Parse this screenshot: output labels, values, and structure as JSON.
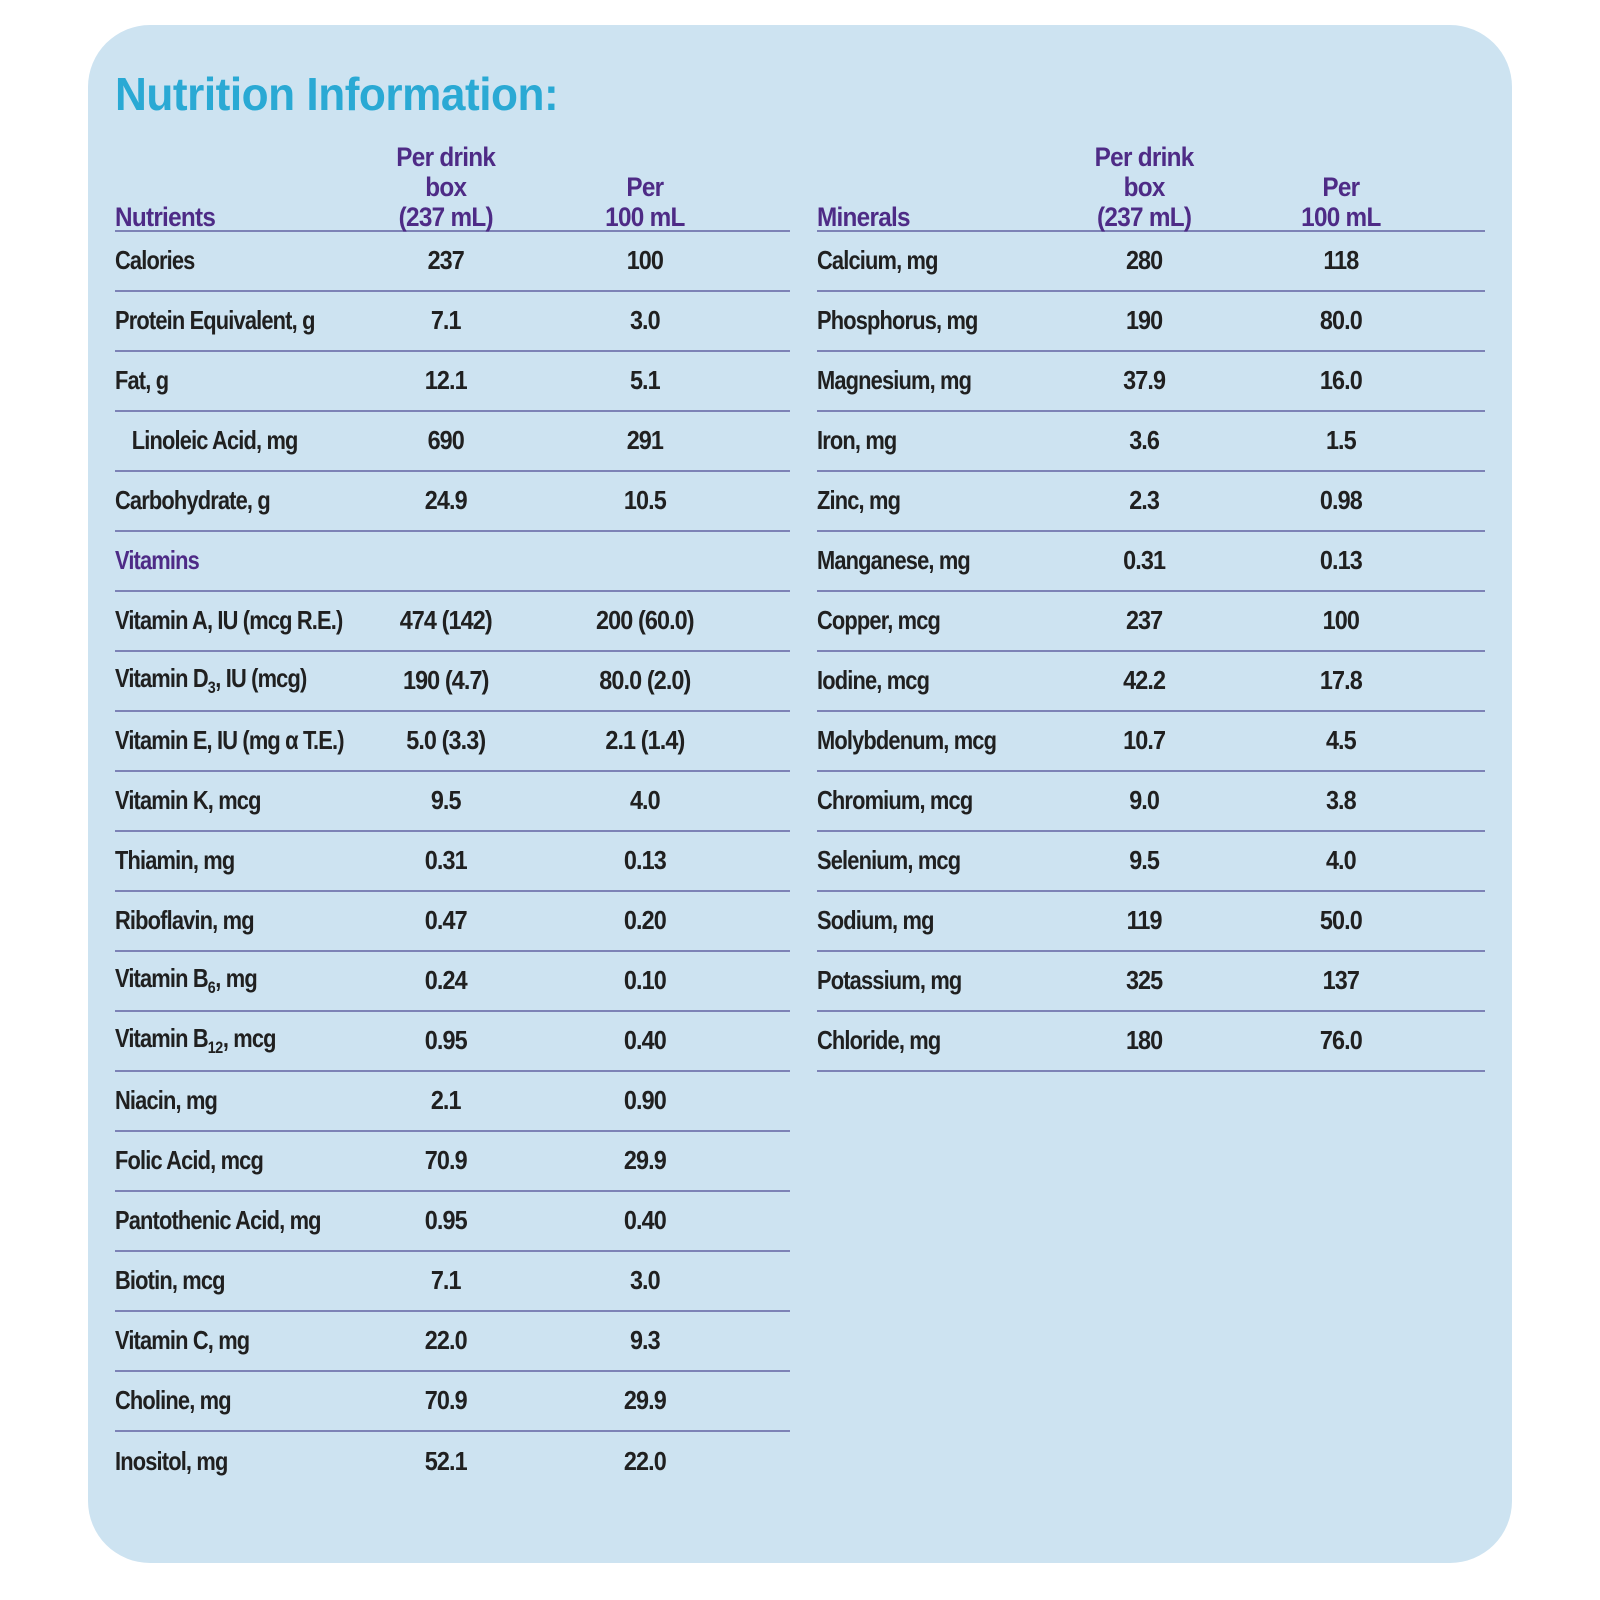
{
  "title": "Nutrition Information:",
  "colors": {
    "card_background": "#cde3f1",
    "title_accent": "#2aa9d4",
    "header_purple": "#4e2b86",
    "divider": "#7d83b6",
    "text": "#202020"
  },
  "column_headers": {
    "per_box": "Per drink box\n(237 mL)",
    "per_100": "Per\n100 mL"
  },
  "tables": [
    {
      "group_label": "Nutrients",
      "rows": [
        {
          "label": "Calories",
          "per_box": "237",
          "per_100": "100"
        },
        {
          "label": "Protein Equivalent, g",
          "per_box": "7.1",
          "per_100": "3.0"
        },
        {
          "label": "Fat, g",
          "per_box": "12.1",
          "per_100": "5.1"
        },
        {
          "label": "Linoleic Acid, mg",
          "indent": true,
          "per_box": "690",
          "per_100": "291"
        },
        {
          "label": "Carbohydrate, g",
          "per_box": "24.9",
          "per_100": "10.5"
        },
        {
          "label": "Vitamins",
          "section": true
        },
        {
          "label": "Vitamin A, IU (mcg R.E.)",
          "per_box": "474 (142)",
          "per_100": "200 (60.0)"
        },
        {
          "label": [
            {
              "t": "Vitamin D"
            },
            {
              "t": "3",
              "sub": true
            },
            {
              "t": ", IU (mcg)"
            }
          ],
          "per_box": "190 (4.7)",
          "per_100": "80.0 (2.0)"
        },
        {
          "label": "Vitamin E, IU (mg α T.E.)",
          "per_box": "5.0 (3.3)",
          "per_100": "2.1 (1.4)"
        },
        {
          "label": "Vitamin K, mcg",
          "per_box": "9.5",
          "per_100": "4.0"
        },
        {
          "label": "Thiamin, mg",
          "per_box": "0.31",
          "per_100": "0.13"
        },
        {
          "label": "Riboflavin, mg",
          "per_box": "0.47",
          "per_100": "0.20"
        },
        {
          "label": [
            {
              "t": "Vitamin B"
            },
            {
              "t": "6",
              "sub": true
            },
            {
              "t": ", mg"
            }
          ],
          "per_box": "0.24",
          "per_100": "0.10"
        },
        {
          "label": [
            {
              "t": "Vitamin B"
            },
            {
              "t": "12",
              "sub": true
            },
            {
              "t": ", mcg"
            }
          ],
          "per_box": "0.95",
          "per_100": "0.40"
        },
        {
          "label": "Niacin, mg",
          "per_box": "2.1",
          "per_100": "0.90"
        },
        {
          "label": "Folic Acid, mcg",
          "per_box": "70.9",
          "per_100": "29.9"
        },
        {
          "label": "Pantothenic Acid, mg",
          "per_box": "0.95",
          "per_100": "0.40"
        },
        {
          "label": "Biotin, mcg",
          "per_box": "7.1",
          "per_100": "3.0"
        },
        {
          "label": "Vitamin C, mg",
          "per_box": "22.0",
          "per_100": "9.3"
        },
        {
          "label": "Choline, mg",
          "per_box": "70.9",
          "per_100": "29.9"
        },
        {
          "label": "Inositol, mg",
          "per_box": "52.1",
          "per_100": "22.0"
        }
      ]
    },
    {
      "group_label": "Minerals",
      "rows": [
        {
          "label": "Calcium, mg",
          "per_box": "280",
          "per_100": "118"
        },
        {
          "label": "Phosphorus, mg",
          "per_box": "190",
          "per_100": "80.0"
        },
        {
          "label": "Magnesium, mg",
          "per_box": "37.9",
          "per_100": "16.0"
        },
        {
          "label": "Iron, mg",
          "per_box": "3.6",
          "per_100": "1.5"
        },
        {
          "label": "Zinc, mg",
          "per_box": "2.3",
          "per_100": "0.98"
        },
        {
          "label": "Manganese, mg",
          "per_box": "0.31",
          "per_100": "0.13"
        },
        {
          "label": "Copper, mcg",
          "per_box": "237",
          "per_100": "100"
        },
        {
          "label": "Iodine, mcg",
          "per_box": "42.2",
          "per_100": "17.8"
        },
        {
          "label": "Molybdenum, mcg",
          "per_box": "10.7",
          "per_100": "4.5"
        },
        {
          "label": "Chromium, mcg",
          "per_box": "9.0",
          "per_100": "3.8"
        },
        {
          "label": "Selenium, mcg",
          "per_box": "9.5",
          "per_100": "4.0"
        },
        {
          "label": "Sodium, mg",
          "per_box": "119",
          "per_100": "50.0"
        },
        {
          "label": "Potassium, mg",
          "per_box": "325",
          "per_100": "137"
        },
        {
          "label": "Chloride, mg",
          "per_box": "180",
          "per_100": "76.0"
        }
      ]
    }
  ]
}
